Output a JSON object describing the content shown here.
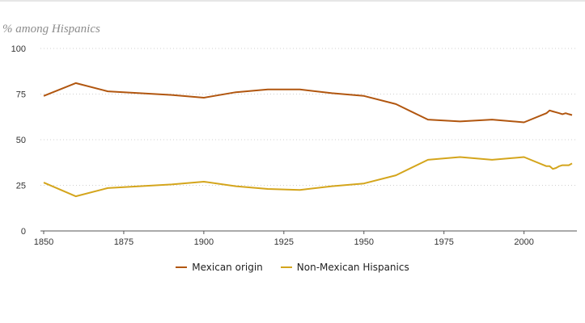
{
  "chart_data": {
    "type": "line",
    "ylabel": "% among Hispanics",
    "xlim": [
      1850,
      2015
    ],
    "ylim": [
      0,
      100
    ],
    "x_ticks": [
      1850,
      1875,
      1900,
      1925,
      1950,
      1975,
      2000
    ],
    "y_ticks": [
      0,
      25,
      50,
      75,
      100
    ],
    "grid": "horizontal dotted",
    "legend_position": "bottom-center",
    "series": [
      {
        "name": "Mexican origin",
        "color": "#b1560f",
        "points": [
          [
            1850,
            74
          ],
          [
            1860,
            81
          ],
          [
            1870,
            76.5
          ],
          [
            1880,
            75.5
          ],
          [
            1890,
            74.5
          ],
          [
            1900,
            73
          ],
          [
            1910,
            76
          ],
          [
            1920,
            77.5
          ],
          [
            1930,
            77.5
          ],
          [
            1940,
            75.5
          ],
          [
            1950,
            74
          ],
          [
            1960,
            69.5
          ],
          [
            1970,
            61
          ],
          [
            1980,
            60
          ],
          [
            1990,
            61
          ],
          [
            2000,
            59.5
          ],
          [
            2007,
            64.5
          ],
          [
            2008,
            66
          ],
          [
            2009,
            65.5
          ],
          [
            2010,
            65
          ],
          [
            2011,
            64.5
          ],
          [
            2012,
            64
          ],
          [
            2013,
            64.5
          ],
          [
            2014,
            64
          ],
          [
            2015,
            63.5
          ]
        ]
      },
      {
        "name": "Non-Mexican Hispanics",
        "color": "#d4a51c",
        "points": [
          [
            1850,
            26.5
          ],
          [
            1860,
            19
          ],
          [
            1870,
            23.5
          ],
          [
            1880,
            24.5
          ],
          [
            1890,
            25.5
          ],
          [
            1900,
            27
          ],
          [
            1910,
            24.5
          ],
          [
            1920,
            23
          ],
          [
            1930,
            22.5
          ],
          [
            1940,
            24.5
          ],
          [
            1950,
            26
          ],
          [
            1960,
            30.5
          ],
          [
            1970,
            39
          ],
          [
            1980,
            40.5
          ],
          [
            1990,
            39
          ],
          [
            2000,
            40.5
          ],
          [
            2007,
            35.5
          ],
          [
            2008,
            35.5
          ],
          [
            2009,
            34
          ],
          [
            2010,
            34.5
          ],
          [
            2011,
            35.5
          ],
          [
            2012,
            36
          ],
          [
            2013,
            36
          ],
          [
            2014,
            36
          ],
          [
            2015,
            37
          ]
        ]
      }
    ]
  }
}
